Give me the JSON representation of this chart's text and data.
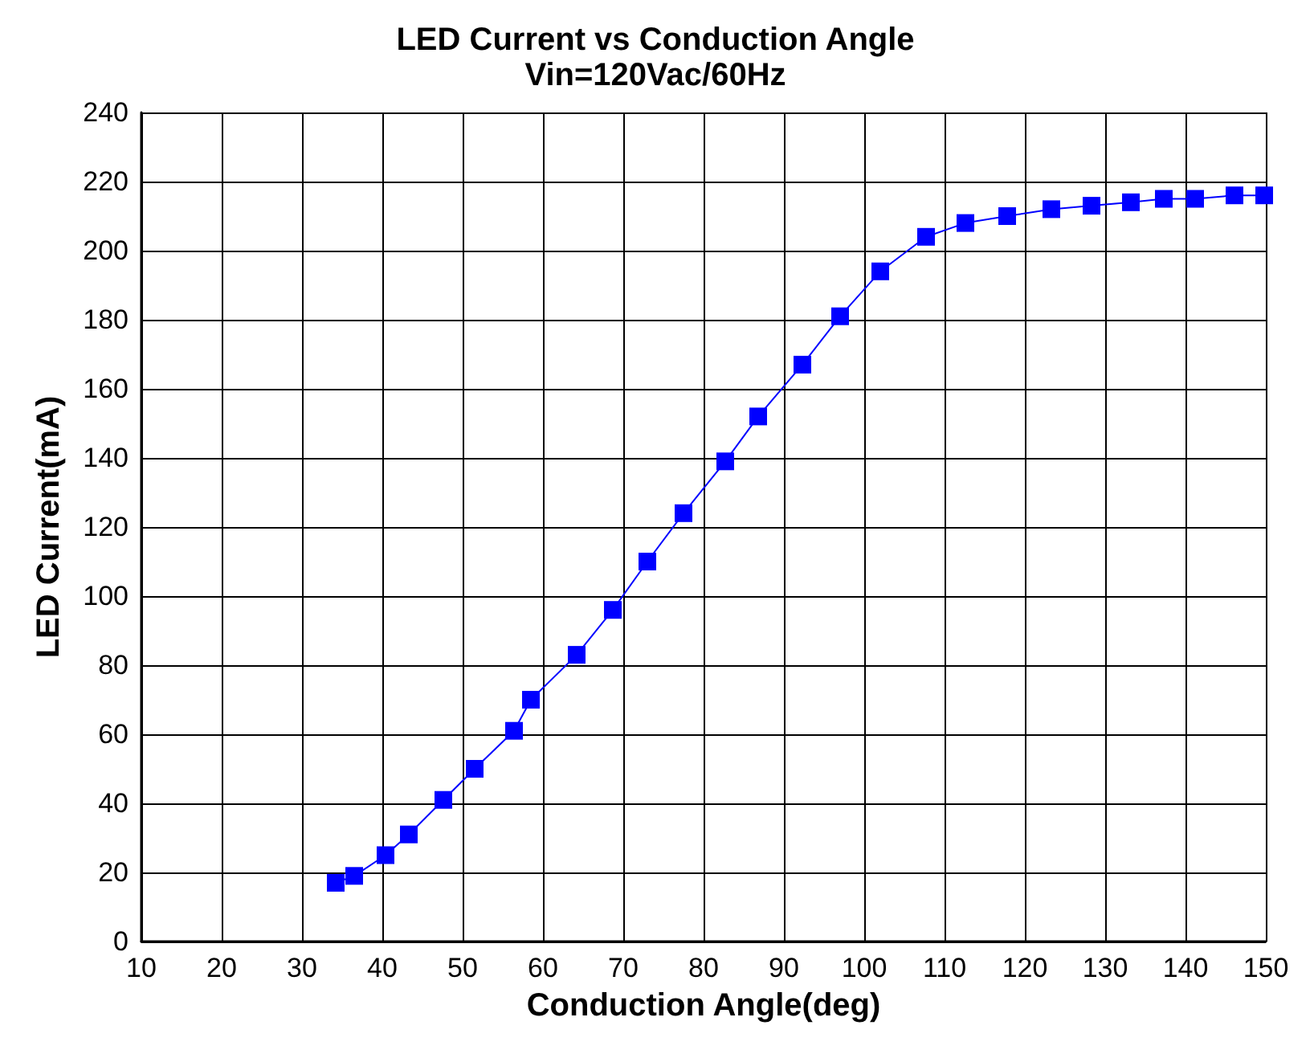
{
  "chart_data": {
    "type": "line",
    "title": "LED Current vs Conduction Angle",
    "subtitle": "Vin=120Vac/60Hz",
    "xlabel": "Conduction Angle(deg)",
    "ylabel": "LED Current(mA)",
    "xlim": [
      10,
      150
    ],
    "xticks": [
      10,
      20,
      30,
      40,
      50,
      60,
      70,
      80,
      90,
      100,
      110,
      120,
      130,
      140,
      150
    ],
    "ylim": [
      0,
      240
    ],
    "yticks": [
      0,
      20,
      40,
      60,
      80,
      100,
      120,
      140,
      160,
      180,
      200,
      220,
      240
    ],
    "grid": true,
    "marker": "square",
    "line_style": "solid",
    "x": [
      34.2,
      36.5,
      40.4,
      43.3,
      47.6,
      51.5,
      56.4,
      58.5,
      64.2,
      68.7,
      73,
      77.5,
      82.7,
      86.8,
      92.3,
      97,
      102,
      107.7,
      112.6,
      117.8,
      123.3,
      128.3,
      133.2,
      137.3,
      141.2,
      146.1,
      149.8
    ],
    "series": [
      {
        "color": "#0000ff",
        "values": [
          17,
          19,
          25,
          31,
          41,
          50,
          61,
          70,
          83,
          96,
          110,
          124,
          139,
          152,
          167,
          181,
          194,
          204,
          208,
          210,
          212,
          213,
          214,
          215,
          215,
          216,
          216
        ]
      }
    ]
  }
}
